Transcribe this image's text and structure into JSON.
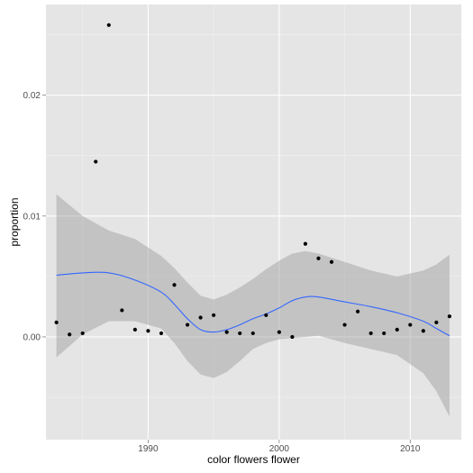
{
  "chart_data": {
    "type": "scatter",
    "title": "",
    "xlabel": "color flowers flower",
    "ylabel": "proportion",
    "xlim": [
      1982.2,
      2013.9
    ],
    "ylim": [
      -0.0085,
      0.0275
    ],
    "x_ticks": [
      1990,
      2000,
      2010
    ],
    "y_ticks": [
      0.0,
      0.01,
      0.02
    ],
    "x_tick_labels": [
      "1990",
      "2000",
      "2010"
    ],
    "y_tick_labels": [
      "0.00",
      "0.01",
      "0.02"
    ],
    "grid": true,
    "legend": "none",
    "colors": {
      "panel": "#e5e5e5",
      "grid_major": "#ffffff",
      "grid_minor": "#f2f2f2",
      "points": "#000000",
      "smooth_line": "#3366ff",
      "ribbon": "#999999"
    },
    "points": [
      {
        "x": 1983,
        "y": 0.0012
      },
      {
        "x": 1984,
        "y": 0.0002
      },
      {
        "x": 1985,
        "y": 0.0003
      },
      {
        "x": 1986,
        "y": 0.0145
      },
      {
        "x": 1987,
        "y": 0.0258
      },
      {
        "x": 1988,
        "y": 0.0022
      },
      {
        "x": 1989,
        "y": 0.0006
      },
      {
        "x": 1990,
        "y": 0.0005
      },
      {
        "x": 1991,
        "y": 0.0003
      },
      {
        "x": 1992,
        "y": 0.0043
      },
      {
        "x": 1993,
        "y": 0.001
      },
      {
        "x": 1994,
        "y": 0.0016
      },
      {
        "x": 1995,
        "y": 0.0018
      },
      {
        "x": 1996,
        "y": 0.0004
      },
      {
        "x": 1997,
        "y": 0.0003
      },
      {
        "x": 1998,
        "y": 0.0003
      },
      {
        "x": 1999,
        "y": 0.0018
      },
      {
        "x": 2000,
        "y": 0.0004
      },
      {
        "x": 2001,
        "y": 0.0
      },
      {
        "x": 2002,
        "y": 0.0077
      },
      {
        "x": 2003,
        "y": 0.0065
      },
      {
        "x": 2004,
        "y": 0.0062
      },
      {
        "x": 2005,
        "y": 0.001
      },
      {
        "x": 2006,
        "y": 0.0021
      },
      {
        "x": 2007,
        "y": 0.0003
      },
      {
        "x": 2008,
        "y": 0.0003
      },
      {
        "x": 2009,
        "y": 0.0006
      },
      {
        "x": 2010,
        "y": 0.001
      },
      {
        "x": 2011,
        "y": 0.0005
      },
      {
        "x": 2012,
        "y": 0.0012
      },
      {
        "x": 2013,
        "y": 0.0017
      }
    ],
    "smooth": [
      {
        "x": 1983,
        "y": 0.0051,
        "lo": -0.0017,
        "hi": 0.0118
      },
      {
        "x": 1985,
        "y": 0.0053,
        "lo": 0.0002,
        "hi": 0.01
      },
      {
        "x": 1987,
        "y": 0.0053,
        "lo": 0.0013,
        "hi": 0.0088
      },
      {
        "x": 1989,
        "y": 0.0047,
        "lo": 0.0013,
        "hi": 0.0081
      },
      {
        "x": 1991,
        "y": 0.0037,
        "lo": 0.0007,
        "hi": 0.0067
      },
      {
        "x": 1992,
        "y": 0.0027,
        "lo": -0.0005,
        "hi": 0.0057
      },
      {
        "x": 1993,
        "y": 0.0015,
        "lo": -0.002,
        "hi": 0.0045
      },
      {
        "x": 1994,
        "y": 0.0006,
        "lo": -0.0031,
        "hi": 0.0034
      },
      {
        "x": 1995,
        "y": 0.0004,
        "lo": -0.0034,
        "hi": 0.0031
      },
      {
        "x": 1996,
        "y": 0.0006,
        "lo": -0.0029,
        "hi": 0.0035
      },
      {
        "x": 1997,
        "y": 0.001,
        "lo": -0.002,
        "hi": 0.0041
      },
      {
        "x": 1998,
        "y": 0.0015,
        "lo": -0.001,
        "hi": 0.0048
      },
      {
        "x": 1999,
        "y": 0.0019,
        "lo": -0.0005,
        "hi": 0.0056
      },
      {
        "x": 2000,
        "y": 0.0024,
        "lo": -0.0002,
        "hi": 0.0063
      },
      {
        "x": 2001,
        "y": 0.003,
        "lo": -0.0001,
        "hi": 0.0069
      },
      {
        "x": 2002,
        "y": 0.0033,
        "lo": 0.0,
        "hi": 0.0071
      },
      {
        "x": 2003,
        "y": 0.0033,
        "lo": 0.0001,
        "hi": 0.0069
      },
      {
        "x": 2005,
        "y": 0.0029,
        "lo": -0.0005,
        "hi": 0.0062
      },
      {
        "x": 2007,
        "y": 0.0025,
        "lo": -0.001,
        "hi": 0.0055
      },
      {
        "x": 2009,
        "y": 0.002,
        "lo": -0.0015,
        "hi": 0.005
      },
      {
        "x": 2011,
        "y": 0.0013,
        "lo": -0.003,
        "hi": 0.0055
      },
      {
        "x": 2012,
        "y": 0.0007,
        "lo": -0.0045,
        "hi": 0.006
      },
      {
        "x": 2013,
        "y": 0.0001,
        "lo": -0.0066,
        "hi": 0.0068
      }
    ]
  }
}
